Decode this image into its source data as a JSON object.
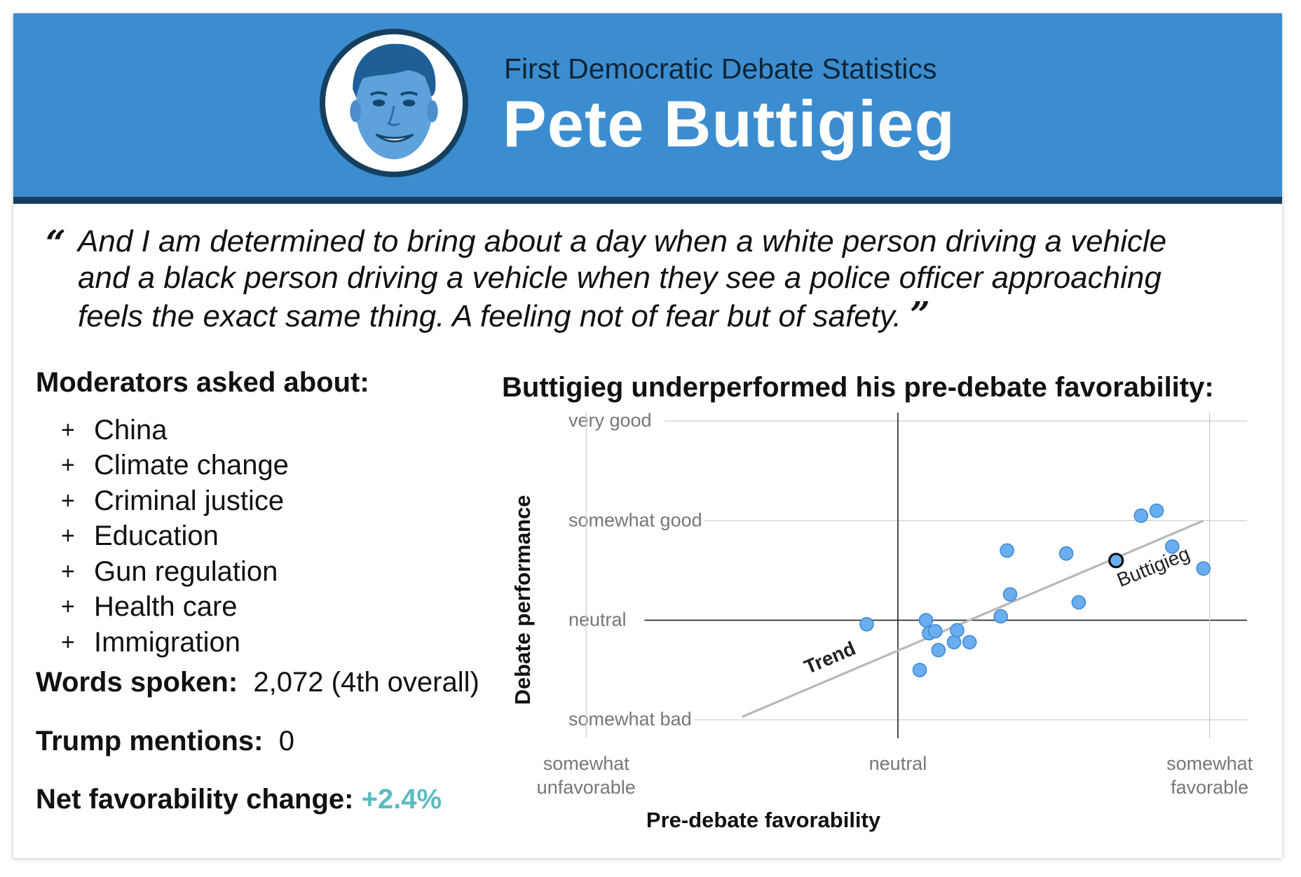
{
  "header": {
    "subtitle": "First Democratic Debate Statistics",
    "title": "Pete Buttigieg",
    "colors": {
      "banner": "#3b8dd0",
      "dark": "#163f5f"
    }
  },
  "quote": {
    "open_mark": "“",
    "close_mark": "”",
    "lines": [
      "And I am determined to bring about a day when a white person driving a vehicle",
      "and a black person driving a vehicle when they see a police officer approaching",
      "feels the exact same thing. A feeling not of fear but of safety."
    ]
  },
  "moderators": {
    "label": "Moderators asked about:",
    "bullet": "+",
    "topics": [
      "China",
      "Climate change",
      "Criminal justice",
      "Education",
      "Gun regulation",
      "Health care",
      "Immigration"
    ]
  },
  "stats": {
    "words_label": "Words spoken:",
    "words_value": "2,072 (4th overall)",
    "trump_label": "Trump mentions:",
    "trump_value": "0",
    "fav_label": "Net favorability change:",
    "fav_value": "+2.4%",
    "fav_color": "#5bbcc0"
  },
  "chart_data": {
    "type": "scatter",
    "title": "Buttigieg underperformed his pre-debate favorability:",
    "xlabel": "Pre-debate favorability",
    "ylabel": "Debate performance",
    "x_ticks": [
      {
        "value": -1,
        "label": [
          "somewhat",
          "unfavorable"
        ]
      },
      {
        "value": 0,
        "label": [
          "neutral"
        ]
      },
      {
        "value": 1,
        "label": [
          "somewhat",
          "favorable"
        ]
      }
    ],
    "y_ticks": [
      {
        "value": 2,
        "label": "very good"
      },
      {
        "value": 1,
        "label": "somewhat good"
      },
      {
        "value": 0,
        "label": "neutral"
      },
      {
        "value": -1,
        "label": "somewhat bad"
      }
    ],
    "xlim": [
      -1.05,
      1.12
    ],
    "ylim": [
      -1.15,
      2.05
    ],
    "points": [
      {
        "x": -0.1,
        "y": -0.04
      },
      {
        "x": 0.09,
        "y": 0.0
      },
      {
        "x": 0.1,
        "y": -0.13
      },
      {
        "x": 0.12,
        "y": -0.11
      },
      {
        "x": 0.13,
        "y": -0.3
      },
      {
        "x": 0.07,
        "y": -0.5
      },
      {
        "x": 0.18,
        "y": -0.22
      },
      {
        "x": 0.19,
        "y": -0.1
      },
      {
        "x": 0.23,
        "y": -0.22
      },
      {
        "x": 0.33,
        "y": 0.04
      },
      {
        "x": 0.36,
        "y": 0.26
      },
      {
        "x": 0.35,
        "y": 0.7
      },
      {
        "x": 0.54,
        "y": 0.67
      },
      {
        "x": 0.58,
        "y": 0.18
      },
      {
        "x": 0.78,
        "y": 1.05
      },
      {
        "x": 0.83,
        "y": 1.1
      },
      {
        "x": 0.88,
        "y": 0.74
      },
      {
        "x": 0.98,
        "y": 0.52
      }
    ],
    "highlight": {
      "x": 0.7,
      "y": 0.6,
      "label": "Buttigieg"
    },
    "trend": {
      "x1": -0.5,
      "y1": -0.97,
      "x2": 0.98,
      "y2": 1.0,
      "label": "Trend"
    },
    "colors": {
      "point": "#6aaef0",
      "point_stroke": "#3f8ad8",
      "trend": "#b8b8b8",
      "axis": "#222222",
      "grid": "#cccccc"
    }
  }
}
